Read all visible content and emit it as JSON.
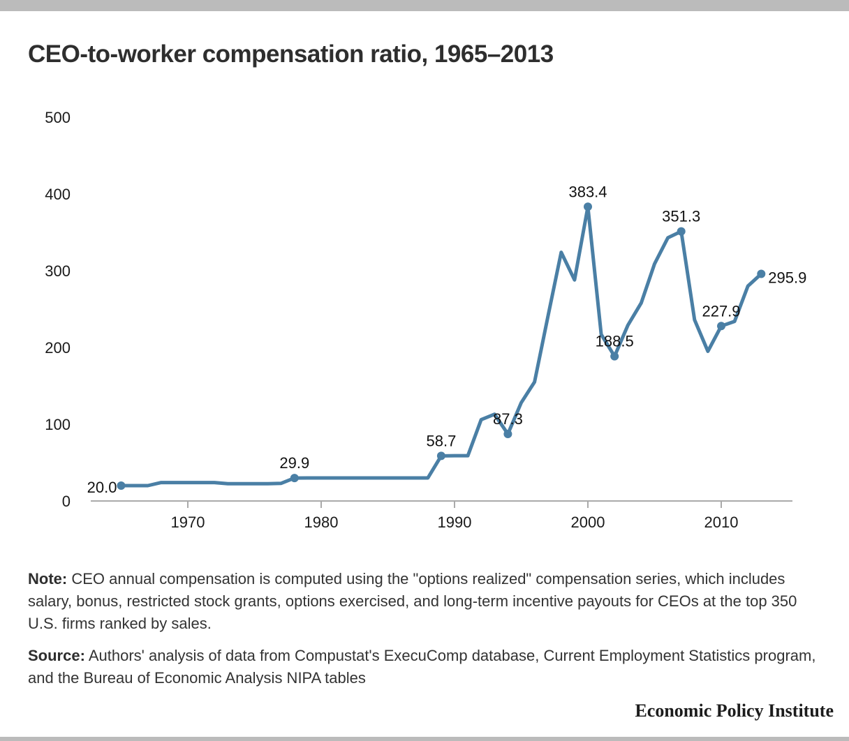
{
  "page": {
    "brand": "Economic Policy Institute",
    "note_label": "Note:",
    "note_text": "CEO annual compensation is computed using the \"options realized\" compensation series, which includes salary, bonus, restricted stock grants, options exercised, and long-term incentive payouts for CEOs at the top 350 U.S. firms ranked by sales.",
    "source_label": "Source:",
    "source_text": "Authors' analysis of data from Compustat's ExecuComp database, Current Employment Statistics program, and the Bureau of Economic Analysis NIPA tables"
  },
  "chart_data": {
    "type": "line",
    "title": "CEO-to-worker compensation ratio, 1965–2013",
    "xlabel": "",
    "ylabel": "",
    "xlim": [
      1962,
      2015
    ],
    "ylim": [
      0,
      500
    ],
    "yticks": [
      0,
      100,
      200,
      300,
      400,
      500
    ],
    "xticks": [
      1970,
      1980,
      1990,
      2000,
      2010
    ],
    "grid": false,
    "legend": "none",
    "color": "#4a7fa5",
    "series": [
      {
        "name": "CEO-to-worker compensation ratio",
        "x": [
          1965,
          1966,
          1967,
          1968,
          1969,
          1970,
          1971,
          1972,
          1973,
          1974,
          1975,
          1976,
          1977,
          1978,
          1979,
          1980,
          1981,
          1982,
          1983,
          1984,
          1985,
          1986,
          1987,
          1988,
          1989,
          1990,
          1991,
          1992,
          1993,
          1994,
          1995,
          1996,
          1997,
          1998,
          1999,
          2000,
          2001,
          2002,
          2003,
          2004,
          2005,
          2006,
          2007,
          2008,
          2009,
          2010,
          2011,
          2012,
          2013
        ],
        "values": [
          20.0,
          20.0,
          20.0,
          24,
          24,
          24,
          24,
          24,
          22.5,
          22.5,
          22.5,
          22.5,
          23,
          29.9,
          30,
          30,
          30,
          30,
          30,
          30,
          30,
          30,
          30,
          30,
          58.7,
          59,
          59,
          106,
          113,
          87.3,
          128,
          155,
          240,
          324,
          288,
          383.4,
          217,
          188.5,
          229,
          258,
          309,
          343,
          351.3,
          236,
          195,
          227.9,
          234,
          280,
          295.9
        ]
      }
    ],
    "annotations": [
      {
        "x": 1965,
        "label": "20.0",
        "position": "left"
      },
      {
        "x": 1978,
        "label": "29.9",
        "position": "top"
      },
      {
        "x": 1989,
        "label": "58.7",
        "position": "top"
      },
      {
        "x": 1994,
        "label": "87.3",
        "position": "top"
      },
      {
        "x": 2000,
        "label": "383.4",
        "position": "top"
      },
      {
        "x": 2002,
        "label": "188.5",
        "position": "top"
      },
      {
        "x": 2007,
        "label": "351.3",
        "position": "top"
      },
      {
        "x": 2010,
        "label": "227.9",
        "position": "top"
      },
      {
        "x": 2013,
        "label": "295.9",
        "position": "right"
      }
    ]
  }
}
